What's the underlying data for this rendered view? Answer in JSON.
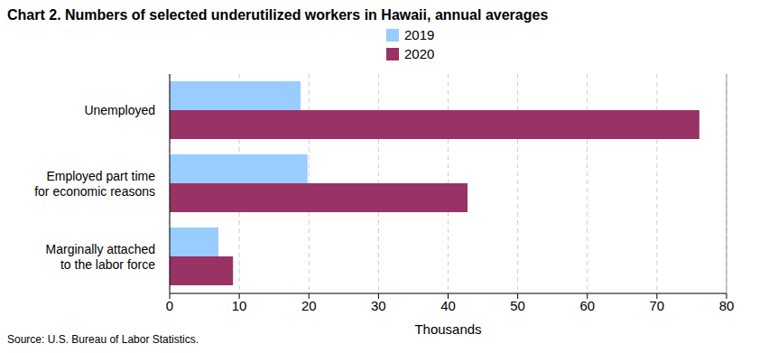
{
  "chart_data": {
    "type": "bar",
    "title": "Chart 2. Numbers of selected underutilized workers in Hawaii, annual averages",
    "orientation": "horizontal",
    "categories": [
      "Unemployed",
      "Employed part time for economic reasons",
      "Marginally attached to the labor force"
    ],
    "series": [
      {
        "name": "2019",
        "color": "#99ccff",
        "values": [
          18.8,
          19.8,
          7.0
        ]
      },
      {
        "name": "2020",
        "color": "#993366",
        "values": [
          76.1,
          42.8,
          9.1
        ]
      }
    ],
    "x_label": "Thousands",
    "xlim": [
      0,
      80
    ],
    "xticks": [
      0,
      10,
      20,
      30,
      40,
      50,
      60,
      70,
      80
    ],
    "grid": true,
    "legend": "top",
    "source": "Source: U.S. Bureau of Labor Statistics."
  }
}
